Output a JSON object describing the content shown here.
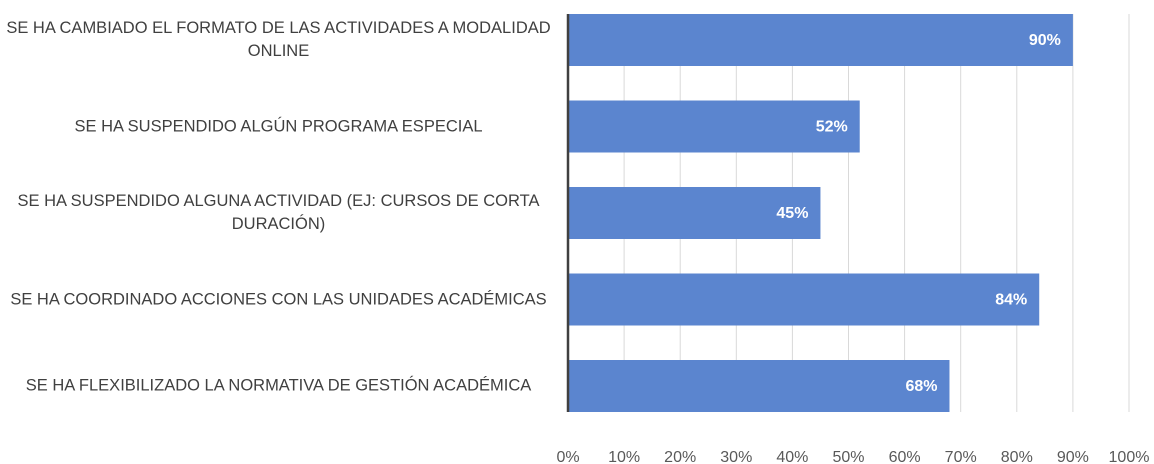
{
  "chart_data": {
    "type": "bar",
    "orientation": "horizontal",
    "categories": [
      "SE HA CAMBIADO EL FORMATO DE LAS ACTIVIDADES A MODALIDAD ONLINE",
      "SE HA SUSPENDIDO ALGÚN PROGRAMA ESPECIAL",
      "SE HA SUSPENDIDO ALGUNA ACTIVIDAD (EJ: CURSOS DE CORTA DURACIÓN)",
      "SE HA COORDINADO ACCIONES CON LAS UNIDADES ACADÉMICAS",
      "SE HA FLEXIBILIZADO LA NORMATIVA DE GESTIÓN ACADÉMICA"
    ],
    "values": [
      90,
      52,
      45,
      84,
      68
    ],
    "value_labels": [
      "90%",
      "52%",
      "45%",
      "84%",
      "68%"
    ],
    "color": "#5b85cf",
    "xlim": [
      0,
      100
    ],
    "xticks": [
      {
        "value": 0,
        "label": "0%"
      },
      {
        "value": 10,
        "label": "10%"
      },
      {
        "value": 20,
        "label": "20%"
      },
      {
        "value": 30,
        "label": "30%"
      },
      {
        "value": 40,
        "label": "40%"
      },
      {
        "value": 50,
        "label": "50%"
      },
      {
        "value": 60,
        "label": "60%"
      },
      {
        "value": 70,
        "label": "70%"
      },
      {
        "value": 80,
        "label": "80%"
      },
      {
        "value": 90,
        "label": "90%"
      },
      {
        "value": 100,
        "label": "100%"
      }
    ],
    "grid": true
  }
}
